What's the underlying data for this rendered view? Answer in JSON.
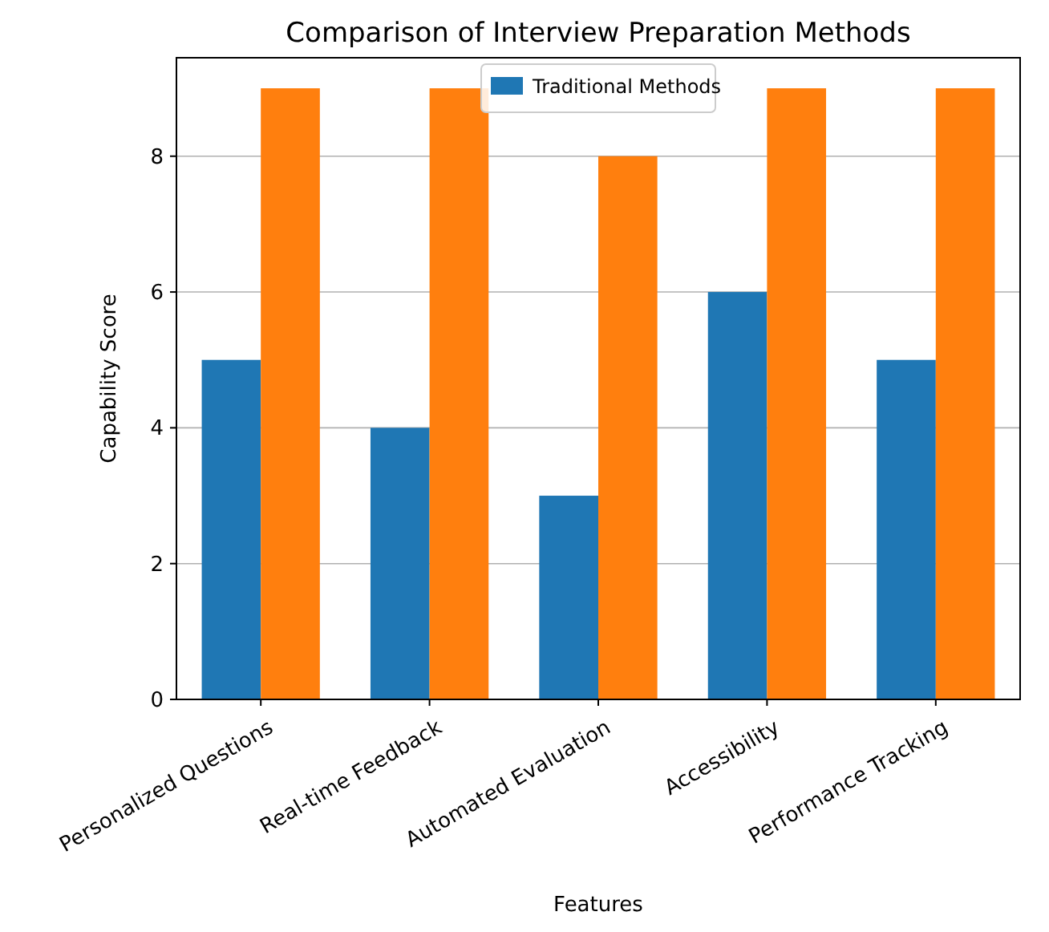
{
  "chart_data": {
    "type": "bar",
    "title": "Comparison of Interview Preparation Methods",
    "xlabel": "Features",
    "ylabel": "Capability Score",
    "categories": [
      "Personalized Questions",
      "Real-time Feedback",
      "Automated Evaluation",
      "Accessibility",
      "Performance Tracking"
    ],
    "series": [
      {
        "name": "Traditional Methods",
        "color": "#1f77b4",
        "values": [
          5,
          4,
          3,
          6,
          5
        ]
      },
      {
        "color": "#ff7f0e",
        "values": [
          9,
          9,
          8,
          9,
          9
        ]
      }
    ],
    "ylim": [
      0,
      9.45
    ],
    "yticks": [
      0,
      2,
      4,
      6,
      8
    ],
    "grid": "y",
    "legend": "top"
  }
}
